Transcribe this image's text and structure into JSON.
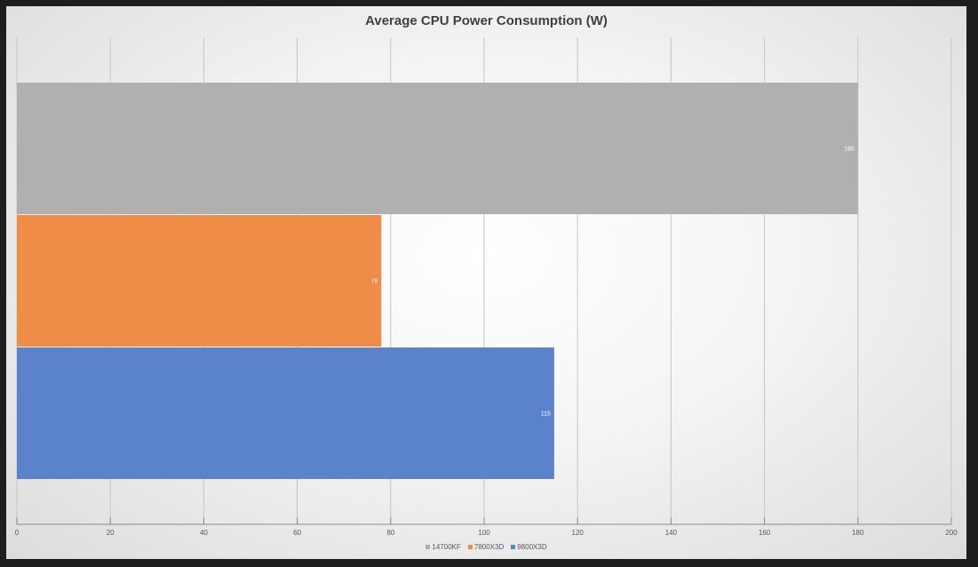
{
  "chart_data": {
    "type": "bar",
    "orientation": "horizontal",
    "title": "Average CPU Power Consumption (W)",
    "xlabel": "",
    "ylabel": "",
    "xlim": [
      0,
      200
    ],
    "x_ticks": [
      0,
      20,
      40,
      60,
      80,
      100,
      120,
      140,
      160,
      180,
      200
    ],
    "grid": "vertical",
    "legend_position": "bottom",
    "series": [
      {
        "name": "14700KF",
        "value": 180,
        "color": "#b0b0b0"
      },
      {
        "name": "7800X3D",
        "value": 78,
        "color": "#ef8c48"
      },
      {
        "name": "9800X3D",
        "value": 115,
        "color": "#5b83cc"
      }
    ]
  }
}
